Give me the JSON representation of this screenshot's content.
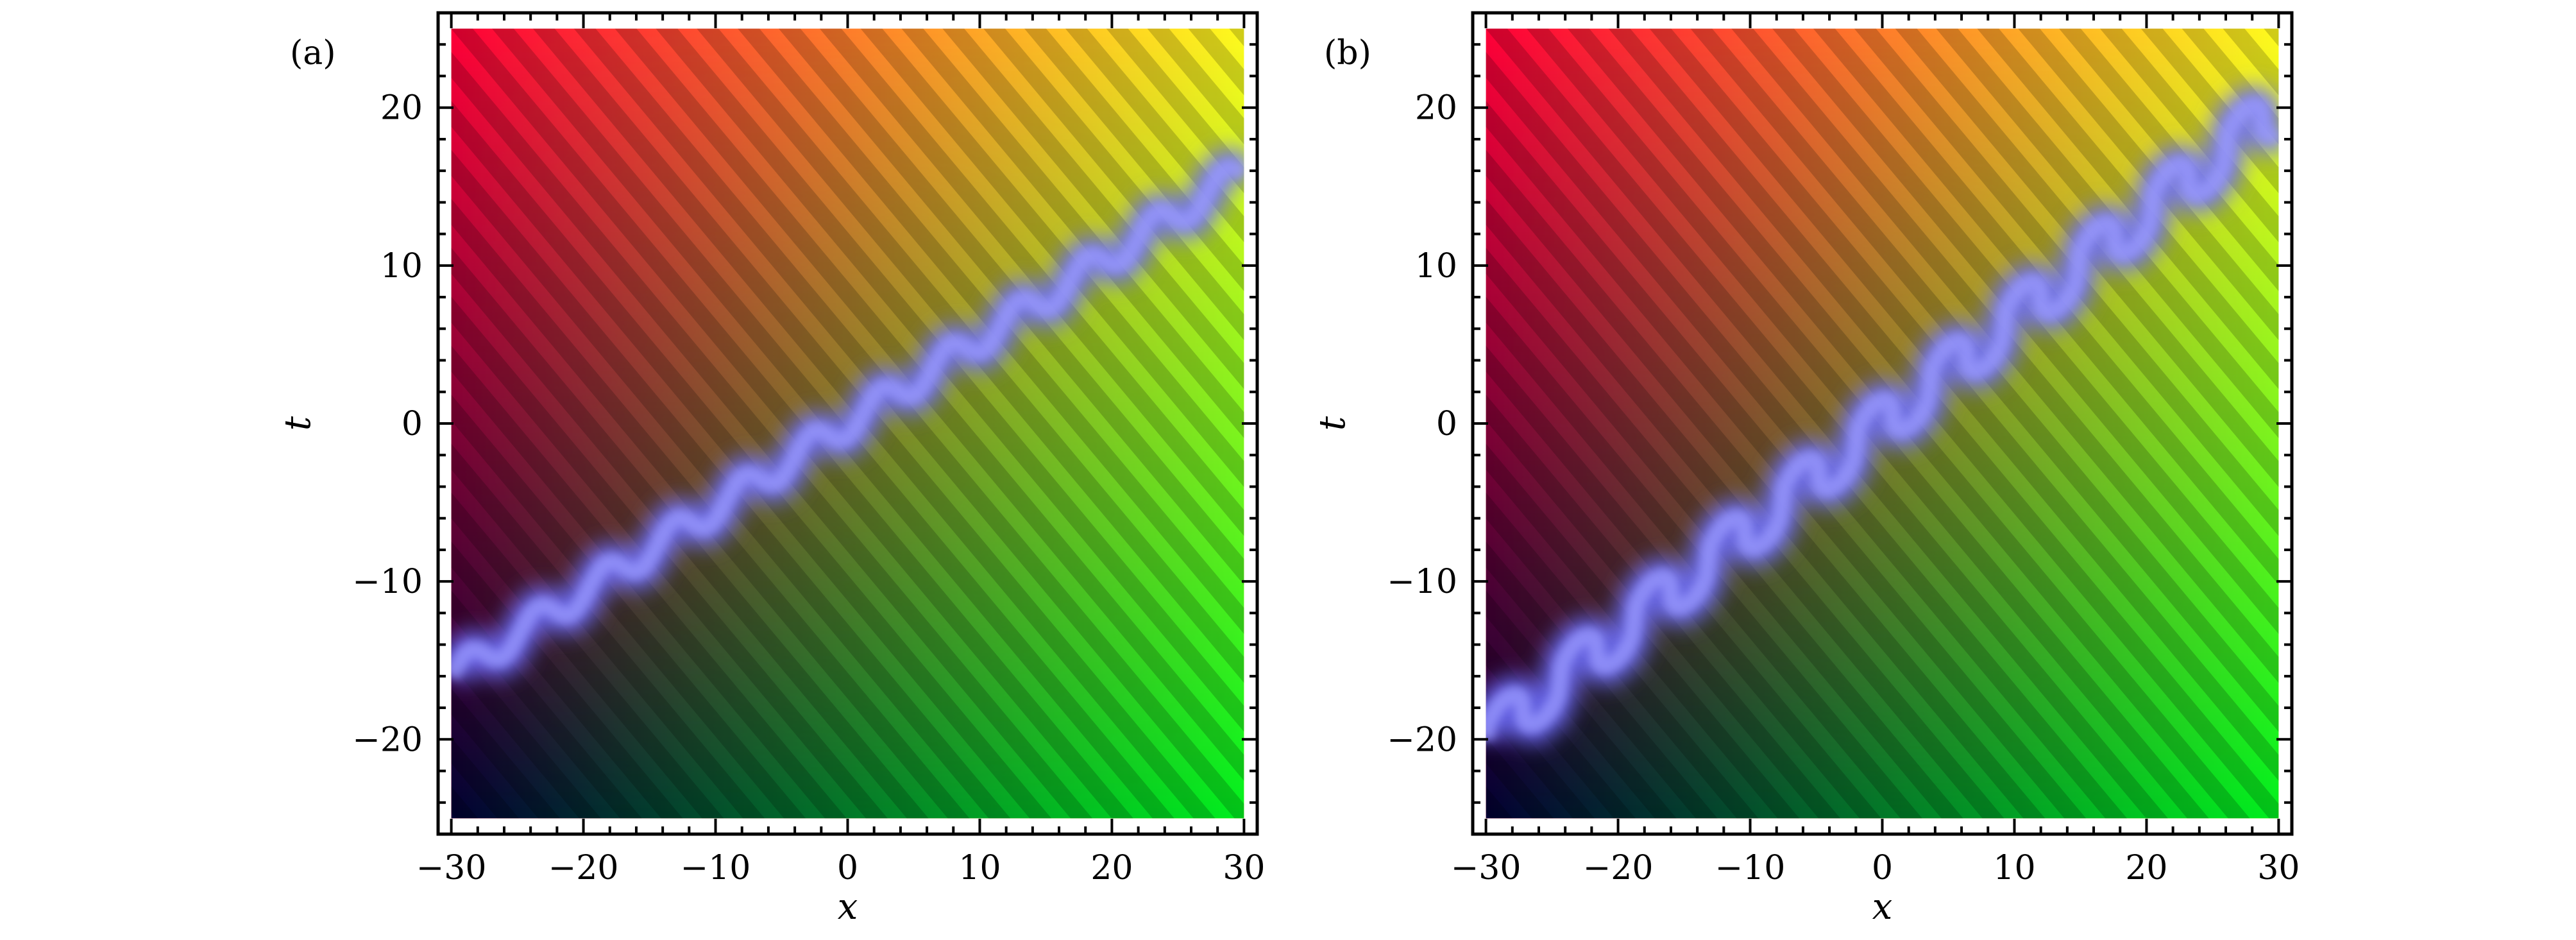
{
  "colors": {
    "corner_top_left": "#ff0038",
    "corner_top_right": "#fffa1e",
    "corner_bottom_left": "#000033",
    "corner_bottom_right": "#00f01e",
    "trace": "#6e6eff",
    "frame": "#000000"
  },
  "chart_data": [
    {
      "type": "heatmap",
      "panel_label": "(a)",
      "description_kind": "complex-field color map (hue/brightness) with bright blue soliton trace",
      "xlabel": "x",
      "ylabel": "t",
      "xlim": [
        -31,
        31
      ],
      "ylim": [
        -26,
        26
      ],
      "data_extent": {
        "x": [
          -30,
          30
        ],
        "t": [
          -25,
          25
        ]
      },
      "xticks": [
        -30,
        -20,
        -10,
        0,
        10,
        20,
        30
      ],
      "yticks": [
        -20,
        -10,
        0,
        10,
        20
      ],
      "xtick_labels": [
        "−30",
        "−20",
        "−10",
        "0",
        "10",
        "20",
        "30"
      ],
      "ytick_labels": [
        "−20",
        "−10",
        "0",
        "10",
        "20"
      ],
      "stripe_period_x": 3.1,
      "trace": {
        "x_start": -30,
        "x_end": 30,
        "t_start": -16,
        "t_end": 16,
        "wiggle_amplitude_t": 0.9,
        "wiggle_period_x": 5.2,
        "style": "smooth-wave"
      }
    },
    {
      "type": "heatmap",
      "panel_label": "(b)",
      "description_kind": "complex-field color map (hue/brightness) with bright blue staircase soliton trace",
      "xlabel": "x",
      "ylabel": "t",
      "xlim": [
        -31,
        31
      ],
      "ylim": [
        -26,
        26
      ],
      "data_extent": {
        "x": [
          -30,
          30
        ],
        "t": [
          -25,
          25
        ]
      },
      "xticks": [
        -30,
        -20,
        -10,
        0,
        10,
        20,
        30
      ],
      "yticks": [
        -20,
        -10,
        0,
        10,
        20
      ],
      "xtick_labels": [
        "−30",
        "−20",
        "−10",
        "0",
        "10",
        "20",
        "30"
      ],
      "ytick_labels": [
        "−20",
        "−10",
        "0",
        "10",
        "20"
      ],
      "stripe_period_x": 3.1,
      "trace": {
        "x_start": -30,
        "x_end": 30,
        "t_start": -20,
        "t_end": 20,
        "wiggle_amplitude_t": 1.6,
        "wiggle_period_x": 5.6,
        "style": "staircase"
      }
    }
  ]
}
